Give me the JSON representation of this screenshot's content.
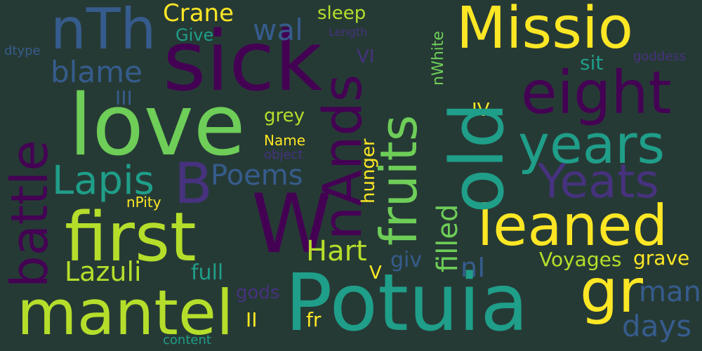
{
  "palette": {
    "background": "#263a35",
    "dark_purple": "#440154",
    "purple": "#46327e",
    "blue": "#365c8d",
    "teal": "#1f9e89",
    "green": "#6ece58",
    "yellow_green": "#b5de2b",
    "yellow": "#fde725"
  },
  "words": {
    "w_sick": "sick",
    "w_missio": "Missio",
    "w_nth": "nTh",
    "w_crane": "Crane",
    "w_sleep": "sleep",
    "w_wal": "wal",
    "w_give": "Give",
    "w_length": "Length",
    "w_dtype": "dtype",
    "w_blame": "blame",
    "w_vi": "VI",
    "w_goddess": "goddess",
    "w_sit": "sit",
    "w_nwhite": "nWhite",
    "w_eight": "eight",
    "w_iii": "III",
    "w_love": "love",
    "w_iv": "IV",
    "w_grey": "grey",
    "w_battle": "battle",
    "w_years": "years",
    "w_name": "Name",
    "w_object": "object",
    "w_lapis": "Lapis",
    "w_b": "B",
    "w_poems": "Poems",
    "w_yeats": "Yeats",
    "w_fruits": "fruits",
    "w_old": "old",
    "w_nands": "nAnds",
    "w_hunger": "hunger",
    "w_filled": "filled",
    "w_npity": "nPity",
    "w_first": "first",
    "w_w": "W",
    "w_leaned": "leaned",
    "w_hart": "Hart",
    "w_ni": "nI",
    "w_lazuli": "Lazuli",
    "w_full": "full",
    "w_giv": "giv",
    "w_voyages": "Voyages",
    "w_grave": "grave",
    "w_v": "V",
    "w_mantel": "mantel",
    "w_potuia": "Potuia",
    "w_gr": "gr",
    "w_man": "man",
    "w_gods": "gods",
    "w_ii": "II",
    "w_fr": "fr",
    "w_days": "days",
    "w_content": "content"
  }
}
